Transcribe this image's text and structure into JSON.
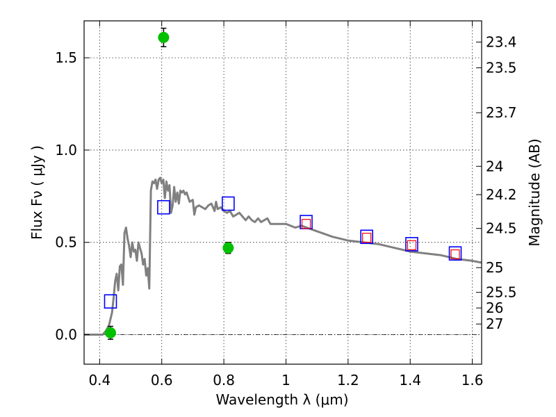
{
  "chart_data": {
    "type": "scatter",
    "xlabel": "Wavelength  λ (μm)",
    "ylabel": "Flux  Fν  ( μJy )",
    "y2label": "Magnitude (AB)",
    "xlim": [
      0.35,
      1.63
    ],
    "ylim": [
      -0.16,
      1.7
    ],
    "grid": true,
    "x_ticks": [
      {
        "v": 0.4,
        "label": "0.4"
      },
      {
        "v": 0.6,
        "label": "0.6"
      },
      {
        "v": 0.8,
        "label": "0.8"
      },
      {
        "v": 1.0,
        "label": "1"
      },
      {
        "v": 1.2,
        "label": "1.2"
      },
      {
        "v": 1.4,
        "label": "1.4"
      },
      {
        "v": 1.6,
        "label": "1.6"
      }
    ],
    "y_ticks": [
      {
        "v": 0.0,
        "label": "0.0"
      },
      {
        "v": 0.5,
        "label": "0.5"
      },
      {
        "v": 1.0,
        "label": "1.0"
      },
      {
        "v": 1.5,
        "label": "1.5"
      }
    ],
    "mag_ticks": [
      {
        "v": 23.4,
        "label": "23.4"
      },
      {
        "v": 23.5,
        "label": "23.5"
      },
      {
        "v": 23.7,
        "label": "23.7"
      },
      {
        "v": 24,
        "label": "24"
      },
      {
        "v": 24.2,
        "label": "24.2"
      },
      {
        "v": 24.5,
        "label": "24.5"
      },
      {
        "v": 25,
        "label": "25"
      },
      {
        "v": 25.5,
        "label": "25.5"
      },
      {
        "v": 26,
        "label": "26"
      },
      {
        "v": 27,
        "label": "27"
      }
    ],
    "observed": {
      "color": "#00c000",
      "points": [
        {
          "x": 0.435,
          "y": 0.01,
          "err": 0.035
        },
        {
          "x": 0.606,
          "y": 1.61,
          "err": 0.05
        },
        {
          "x": 0.814,
          "y": 0.47,
          "err": 0.03
        }
      ]
    },
    "model_photometry": {
      "color": "#0000ff",
      "points": [
        {
          "x": 0.435,
          "y": 0.18
        },
        {
          "x": 0.606,
          "y": 0.69
        },
        {
          "x": 0.814,
          "y": 0.71
        },
        {
          "x": 1.065,
          "y": 0.61
        },
        {
          "x": 1.26,
          "y": 0.53
        },
        {
          "x": 1.405,
          "y": 0.49
        },
        {
          "x": 1.545,
          "y": 0.44
        }
      ]
    },
    "alt_photometry": {
      "color": "#ff0000",
      "points": [
        {
          "x": 1.065,
          "y": 0.6
        },
        {
          "x": 1.26,
          "y": 0.525
        },
        {
          "x": 1.405,
          "y": 0.485
        },
        {
          "x": 1.545,
          "y": 0.435
        }
      ]
    },
    "template_spectrum": {
      "color": "#808080",
      "x": [
        0.35,
        0.41,
        0.42,
        0.43,
        0.44,
        0.445,
        0.45,
        0.455,
        0.46,
        0.465,
        0.47,
        0.475,
        0.48,
        0.485,
        0.49,
        0.495,
        0.5,
        0.505,
        0.51,
        0.515,
        0.52,
        0.525,
        0.53,
        0.535,
        0.54,
        0.545,
        0.55,
        0.555,
        0.56,
        0.565,
        0.57,
        0.575,
        0.58,
        0.585,
        0.59,
        0.595,
        0.6,
        0.605,
        0.61,
        0.615,
        0.62,
        0.625,
        0.63,
        0.635,
        0.64,
        0.645,
        0.65,
        0.655,
        0.66,
        0.665,
        0.67,
        0.675,
        0.68,
        0.69,
        0.7,
        0.705,
        0.71,
        0.72,
        0.73,
        0.74,
        0.75,
        0.76,
        0.77,
        0.775,
        0.78,
        0.79,
        0.8,
        0.81,
        0.82,
        0.83,
        0.84,
        0.85,
        0.86,
        0.87,
        0.88,
        0.89,
        0.9,
        0.91,
        0.92,
        0.93,
        0.94,
        0.95,
        0.97,
        1.0,
        1.03,
        1.05,
        1.1,
        1.15,
        1.2,
        1.25,
        1.3,
        1.35,
        1.4,
        1.45,
        1.5,
        1.55,
        1.6,
        1.63
      ],
      "y": [
        0.0,
        0.0,
        0.02,
        0.05,
        0.12,
        0.2,
        0.29,
        0.33,
        0.24,
        0.37,
        0.38,
        0.27,
        0.55,
        0.58,
        0.52,
        0.48,
        0.42,
        0.5,
        0.45,
        0.46,
        0.4,
        0.5,
        0.47,
        0.44,
        0.38,
        0.41,
        0.32,
        0.36,
        0.25,
        0.78,
        0.83,
        0.82,
        0.84,
        0.79,
        0.84,
        0.85,
        0.82,
        0.84,
        0.74,
        0.83,
        0.78,
        0.81,
        0.66,
        0.7,
        0.8,
        0.72,
        0.77,
        0.71,
        0.78,
        0.77,
        0.78,
        0.76,
        0.77,
        0.72,
        0.73,
        0.65,
        0.69,
        0.7,
        0.69,
        0.68,
        0.7,
        0.71,
        0.67,
        0.72,
        0.68,
        0.69,
        0.67,
        0.66,
        0.67,
        0.64,
        0.65,
        0.66,
        0.64,
        0.62,
        0.64,
        0.62,
        0.61,
        0.63,
        0.61,
        0.62,
        0.63,
        0.6,
        0.6,
        0.6,
        0.58,
        0.59,
        0.56,
        0.53,
        0.51,
        0.5,
        0.49,
        0.47,
        0.45,
        0.44,
        0.43,
        0.41,
        0.4,
        0.39
      ]
    }
  }
}
